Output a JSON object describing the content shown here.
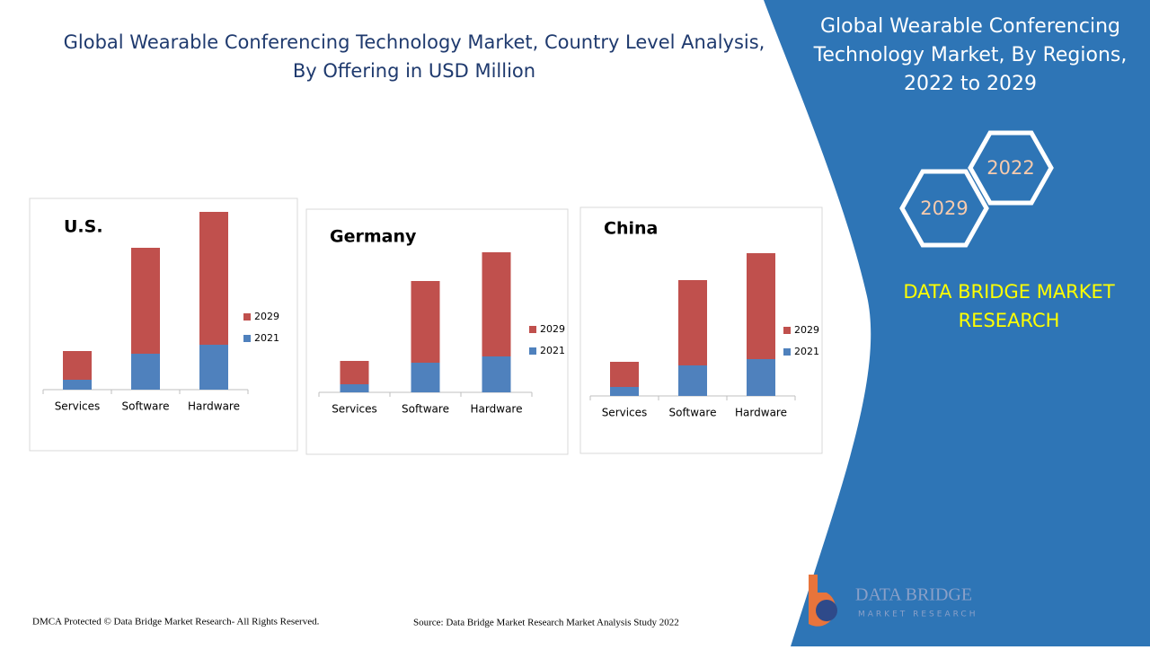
{
  "header": {
    "title_line1": "Global Wearable Conferencing Technology Market, Country Level Analysis,",
    "title_line2": "By Offering in USD Million"
  },
  "chart_data": [
    {
      "type": "bar",
      "stacked": true,
      "title": "U.S.",
      "categories": [
        "Services",
        "Software",
        "Hardware"
      ],
      "series": [
        {
          "name": "2021",
          "color": "#4f81bd",
          "values": [
            11,
            40,
            50
          ]
        },
        {
          "name": "2029",
          "color": "#c0504d",
          "values": [
            32,
            118,
            148
          ]
        }
      ]
    },
    {
      "type": "bar",
      "stacked": true,
      "title": "Germany",
      "categories": [
        "Services",
        "Software",
        "Hardware"
      ],
      "series": [
        {
          "name": "2021",
          "color": "#4f81bd",
          "values": [
            9,
            33,
            40
          ]
        },
        {
          "name": "2029",
          "color": "#c0504d",
          "values": [
            26,
            91,
            116
          ]
        }
      ]
    },
    {
      "type": "bar",
      "stacked": true,
      "title": "China",
      "categories": [
        "Services",
        "Software",
        "Hardware"
      ],
      "series": [
        {
          "name": "2021",
          "color": "#4f81bd",
          "values": [
            10,
            34,
            41
          ]
        },
        {
          "name": "2029",
          "color": "#c0504d",
          "values": [
            28,
            95,
            118
          ]
        }
      ]
    }
  ],
  "sidebar": {
    "title_lines": [
      "Global Wearable Conferencing",
      "Technology Market, By Regions,",
      "2022 to 2029"
    ],
    "hex_top": "2022",
    "hex_bottom": "2029",
    "brand_lines": [
      "DATA BRIDGE MARKET",
      "RESEARCH"
    ]
  },
  "footer": {
    "copyright": "DMCA Protected © Data Bridge Market Research- All Rights Reserved.",
    "source": "Source: Data Bridge Market Research Market Analysis Study 2022"
  },
  "logo": {
    "name": "DATA BRIDGE",
    "tagline": "MARKET RESEARCH"
  }
}
